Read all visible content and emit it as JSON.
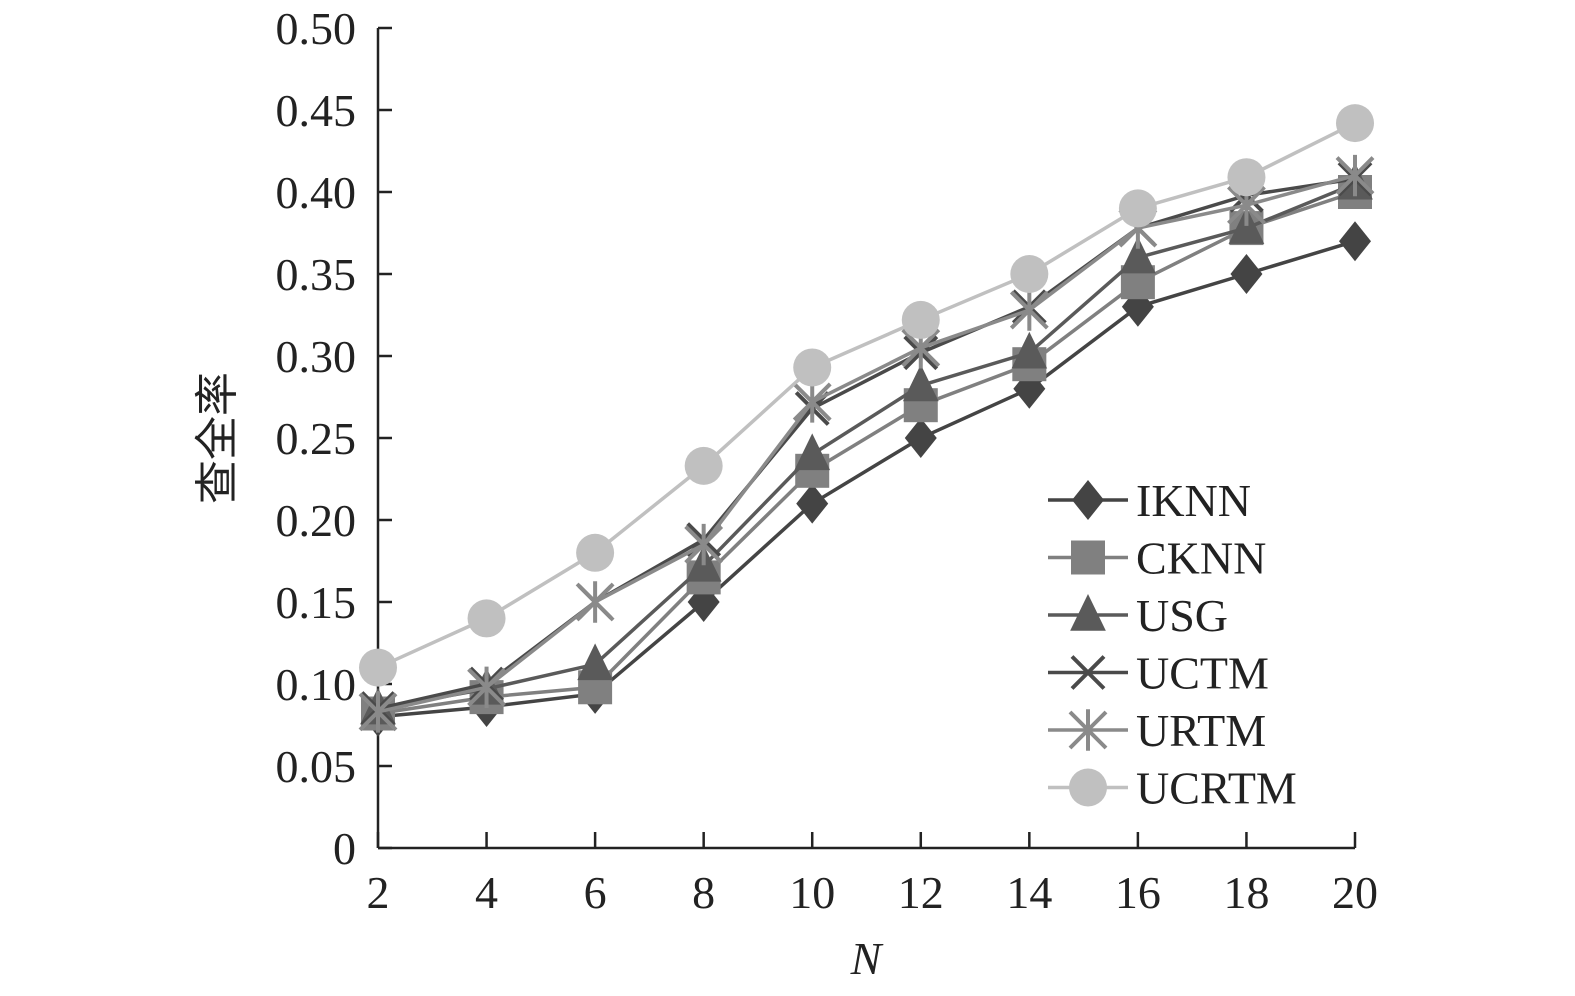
{
  "chart_data": {
    "type": "line",
    "title": "",
    "xlabel": "N",
    "ylabel": "查全率",
    "x": [
      2,
      4,
      6,
      8,
      10,
      12,
      14,
      16,
      18,
      20
    ],
    "x_ticks": [
      "2",
      "4",
      "6",
      "8",
      "10",
      "12",
      "14",
      "16",
      "18",
      "20"
    ],
    "y_ticks": [
      "0",
      "0.05",
      "0.10",
      "0.15",
      "0.20",
      "0.25",
      "0.30",
      "0.35",
      "0.40",
      "0.45",
      "0.50"
    ],
    "xlim": [
      2,
      20
    ],
    "ylim": [
      0,
      0.5
    ],
    "grid": false,
    "legend_position": "bottom-right",
    "series": [
      {
        "name": "IKNN",
        "marker": "diamond",
        "color": "#444444",
        "values": [
          0.08,
          0.086,
          0.094,
          0.15,
          0.21,
          0.25,
          0.28,
          0.33,
          0.35,
          0.37
        ]
      },
      {
        "name": "CKNN",
        "marker": "square",
        "color": "#808080",
        "values": [
          0.082,
          0.092,
          0.098,
          0.165,
          0.23,
          0.27,
          0.295,
          0.345,
          0.378,
          0.4
        ]
      },
      {
        "name": "USG",
        "marker": "triangle",
        "color": "#5a5a5a",
        "values": [
          0.085,
          0.097,
          0.112,
          0.172,
          0.24,
          0.282,
          0.302,
          0.36,
          0.378,
          0.405
        ]
      },
      {
        "name": "UCTM",
        "marker": "x",
        "color": "#4a4a4a",
        "values": [
          0.085,
          0.1,
          0.15,
          0.188,
          0.268,
          0.302,
          0.33,
          0.378,
          0.398,
          0.408
        ]
      },
      {
        "name": "URTM",
        "marker": "asterisk",
        "color": "#8a8a8a",
        "values": [
          0.083,
          0.098,
          0.15,
          0.185,
          0.272,
          0.305,
          0.328,
          0.378,
          0.392,
          0.41
        ]
      },
      {
        "name": "UCRTM",
        "marker": "circle",
        "color": "#c0c0c0",
        "values": [
          0.11,
          0.14,
          0.18,
          0.233,
          0.293,
          0.322,
          0.35,
          0.39,
          0.409,
          0.442
        ]
      }
    ]
  }
}
